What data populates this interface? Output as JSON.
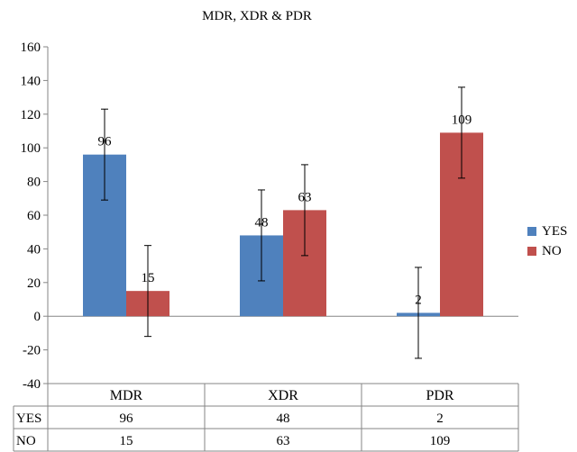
{
  "chart_data": {
    "type": "bar",
    "title": "MDR, XDR & PDR",
    "categories": [
      "MDR",
      "XDR",
      "PDR"
    ],
    "series": [
      {
        "name": "YES",
        "values": [
          96,
          48,
          2
        ],
        "color": "#4F81BD"
      },
      {
        "name": "NO",
        "values": [
          15,
          63,
          109
        ],
        "color": "#C0504D"
      }
    ],
    "error_bar": 27,
    "ylim": [
      -40,
      160
    ],
    "yticks": [
      -40,
      -20,
      0,
      20,
      40,
      60,
      80,
      100,
      120,
      140,
      160
    ],
    "grid": false,
    "legend": "right",
    "data_table": true
  }
}
